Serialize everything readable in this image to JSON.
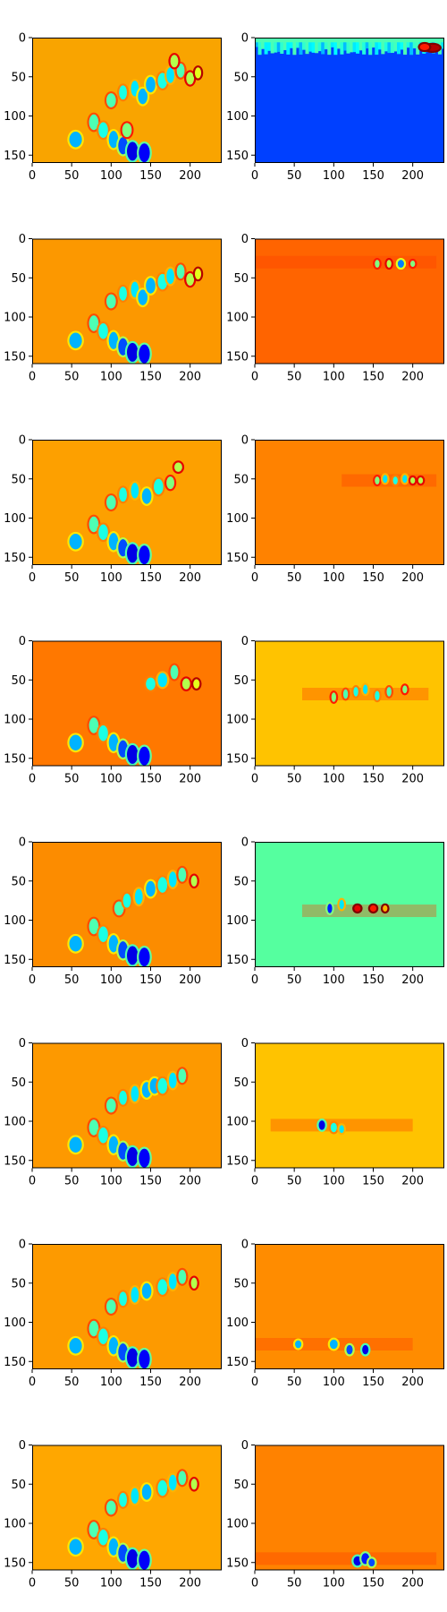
{
  "figure": {
    "layout": "8x2 grid of heatmap subplots",
    "colormap": "jet",
    "interpolation": "nearest"
  },
  "chart_data": {
    "type": "heatmap",
    "grid": {
      "rows": 8,
      "cols": 2
    },
    "image_extent": {
      "width": 240,
      "height": 160
    },
    "x_ticks": [
      0,
      50,
      100,
      150,
      200
    ],
    "y_ticks": [
      0,
      50,
      100,
      150
    ],
    "colormap": "jet",
    "panels": [
      {
        "row": 0,
        "col": 0,
        "background": "#f9a400",
        "blobs": [
          [
            55,
            130,
            8,
            10,
            0.3
          ],
          [
            78,
            108,
            6,
            10,
            0.45
          ],
          [
            90,
            118,
            6,
            10,
            0.4
          ],
          [
            103,
            130,
            6,
            11,
            0.3
          ],
          [
            115,
            138,
            6,
            11,
            0.2
          ],
          [
            127,
            145,
            7,
            12,
            0.1
          ],
          [
            142,
            147,
            7,
            12,
            0.12
          ],
          [
            120,
            118,
            6,
            9,
            0.5
          ],
          [
            100,
            80,
            6,
            9,
            0.45
          ],
          [
            115,
            70,
            5,
            9,
            0.4
          ],
          [
            130,
            65,
            5,
            10,
            0.35
          ],
          [
            140,
            75,
            6,
            10,
            0.3
          ],
          [
            150,
            60,
            6,
            10,
            0.3
          ],
          [
            165,
            55,
            6,
            10,
            0.4
          ],
          [
            175,
            48,
            5,
            10,
            0.35
          ],
          [
            188,
            42,
            5,
            9,
            0.45
          ],
          [
            200,
            52,
            5,
            8,
            0.55
          ],
          [
            210,
            45,
            4,
            7,
            0.6
          ],
          [
            180,
            30,
            5,
            8,
            0.55
          ]
        ]
      },
      {
        "row": 0,
        "col": 1,
        "background": "#0040ff",
        "top_band": true,
        "blobs": [
          [
            225,
            13,
            9,
            4,
            0.95
          ],
          [
            215,
            12,
            6,
            4,
            0.85
          ]
        ]
      },
      {
        "row": 1,
        "col": 0,
        "background": "#fc9800",
        "blobs": [
          [
            55,
            130,
            8,
            10,
            0.3
          ],
          [
            78,
            108,
            6,
            10,
            0.45
          ],
          [
            90,
            118,
            6,
            10,
            0.4
          ],
          [
            103,
            130,
            6,
            11,
            0.3
          ],
          [
            115,
            138,
            6,
            11,
            0.2
          ],
          [
            127,
            145,
            7,
            12,
            0.1
          ],
          [
            142,
            147,
            7,
            12,
            0.12
          ],
          [
            100,
            80,
            6,
            9,
            0.45
          ],
          [
            115,
            70,
            5,
            9,
            0.4
          ],
          [
            130,
            65,
            5,
            10,
            0.35
          ],
          [
            140,
            75,
            6,
            10,
            0.3
          ],
          [
            150,
            60,
            6,
            10,
            0.3
          ],
          [
            165,
            55,
            6,
            10,
            0.4
          ],
          [
            175,
            48,
            5,
            10,
            0.35
          ],
          [
            188,
            42,
            5,
            9,
            0.45
          ],
          [
            200,
            52,
            5,
            8,
            0.55
          ],
          [
            210,
            45,
            4,
            7,
            0.6
          ]
        ]
      },
      {
        "row": 1,
        "col": 1,
        "background": "#ff6400",
        "band_y": 30,
        "band_x": [
          0,
          230
        ],
        "blobs": [
          [
            155,
            32,
            3,
            5,
            0.5
          ],
          [
            170,
            32,
            3,
            5,
            0.55
          ],
          [
            185,
            32,
            4,
            5,
            0.25
          ],
          [
            200,
            32,
            3,
            4,
            0.5
          ]
        ]
      },
      {
        "row": 2,
        "col": 0,
        "background": "#fda000",
        "blobs": [
          [
            55,
            130,
            8,
            10,
            0.3
          ],
          [
            78,
            108,
            6,
            10,
            0.45
          ],
          [
            90,
            118,
            6,
            10,
            0.4
          ],
          [
            103,
            130,
            6,
            11,
            0.3
          ],
          [
            115,
            138,
            6,
            11,
            0.2
          ],
          [
            127,
            145,
            7,
            12,
            0.1
          ],
          [
            142,
            147,
            7,
            12,
            0.12
          ],
          [
            100,
            80,
            6,
            9,
            0.45
          ],
          [
            115,
            70,
            5,
            9,
            0.4
          ],
          [
            130,
            65,
            5,
            10,
            0.35
          ],
          [
            145,
            72,
            6,
            10,
            0.3
          ],
          [
            160,
            60,
            6,
            10,
            0.4
          ],
          [
            175,
            55,
            5,
            8,
            0.5
          ],
          [
            185,
            35,
            5,
            6,
            0.55
          ]
        ]
      },
      {
        "row": 2,
        "col": 1,
        "background": "#ff8200",
        "band_y": 52,
        "band_x": [
          110,
          230
        ],
        "blobs": [
          [
            155,
            52,
            3,
            5,
            0.5
          ],
          [
            165,
            50,
            3,
            5,
            0.35
          ],
          [
            178,
            52,
            3,
            5,
            0.4
          ],
          [
            190,
            50,
            3,
            5,
            0.35
          ],
          [
            200,
            52,
            3,
            4,
            0.55
          ],
          [
            210,
            52,
            3,
            4,
            0.55
          ]
        ]
      },
      {
        "row": 3,
        "col": 0,
        "background": "#ff7800",
        "blobs": [
          [
            55,
            130,
            8,
            10,
            0.3
          ],
          [
            78,
            108,
            6,
            10,
            0.45
          ],
          [
            90,
            118,
            6,
            10,
            0.4
          ],
          [
            103,
            130,
            6,
            11,
            0.3
          ],
          [
            115,
            138,
            6,
            11,
            0.2
          ],
          [
            127,
            145,
            7,
            12,
            0.1
          ],
          [
            142,
            147,
            7,
            12,
            0.12
          ],
          [
            150,
            55,
            6,
            8,
            0.4
          ],
          [
            165,
            50,
            6,
            9,
            0.35
          ],
          [
            180,
            40,
            5,
            9,
            0.45
          ],
          [
            195,
            55,
            5,
            7,
            0.55
          ],
          [
            208,
            55,
            4,
            6,
            0.6
          ]
        ]
      },
      {
        "row": 3,
        "col": 1,
        "background": "#ffc300",
        "band_y": 68,
        "band_x": [
          60,
          220
        ],
        "blobs": [
          [
            100,
            72,
            3,
            6,
            0.5
          ],
          [
            115,
            68,
            3,
            6,
            0.45
          ],
          [
            128,
            65,
            3,
            6,
            0.4
          ],
          [
            140,
            62,
            3,
            6,
            0.35
          ],
          [
            155,
            70,
            3,
            6,
            0.4
          ],
          [
            170,
            65,
            3,
            6,
            0.45
          ],
          [
            190,
            62,
            3,
            5,
            0.5
          ]
        ]
      },
      {
        "row": 4,
        "col": 0,
        "background": "#fc8c00",
        "blobs": [
          [
            55,
            130,
            8,
            10,
            0.3
          ],
          [
            78,
            108,
            6,
            10,
            0.45
          ],
          [
            90,
            118,
            6,
            10,
            0.4
          ],
          [
            103,
            130,
            6,
            11,
            0.3
          ],
          [
            115,
            138,
            6,
            11,
            0.2
          ],
          [
            127,
            145,
            7,
            12,
            0.1
          ],
          [
            142,
            147,
            7,
            12,
            0.12
          ],
          [
            110,
            85,
            6,
            9,
            0.45
          ],
          [
            120,
            75,
            5,
            9,
            0.4
          ],
          [
            135,
            70,
            5,
            10,
            0.35
          ],
          [
            150,
            60,
            6,
            10,
            0.3
          ],
          [
            165,
            55,
            6,
            10,
            0.4
          ],
          [
            178,
            48,
            5,
            10,
            0.35
          ],
          [
            190,
            42,
            5,
            9,
            0.45
          ],
          [
            205,
            50,
            4,
            7,
            0.55
          ]
        ]
      },
      {
        "row": 4,
        "col": 1,
        "background": "#55ff9f",
        "band_y": 88,
        "band_x": [
          60,
          230
        ],
        "blobs": [
          [
            95,
            85,
            3,
            6,
            0.15
          ],
          [
            110,
            80,
            3,
            6,
            0.35
          ],
          [
            130,
            85,
            4,
            4,
            0.9
          ],
          [
            150,
            85,
            4,
            4,
            0.85
          ],
          [
            165,
            85,
            3,
            4,
            0.7
          ]
        ]
      },
      {
        "row": 5,
        "col": 0,
        "background": "#fd9900",
        "blobs": [
          [
            55,
            130,
            8,
            10,
            0.3
          ],
          [
            78,
            108,
            6,
            10,
            0.45
          ],
          [
            90,
            118,
            6,
            10,
            0.4
          ],
          [
            103,
            130,
            6,
            11,
            0.3
          ],
          [
            115,
            138,
            6,
            11,
            0.2
          ],
          [
            127,
            145,
            7,
            12,
            0.1
          ],
          [
            142,
            147,
            7,
            12,
            0.12
          ],
          [
            100,
            80,
            6,
            9,
            0.45
          ],
          [
            115,
            70,
            5,
            9,
            0.4
          ],
          [
            130,
            65,
            5,
            10,
            0.35
          ],
          [
            145,
            60,
            6,
            10,
            0.3
          ],
          [
            155,
            55,
            6,
            10,
            0.3
          ],
          [
            165,
            55,
            6,
            10,
            0.4
          ],
          [
            178,
            48,
            5,
            10,
            0.35
          ],
          [
            190,
            42,
            5,
            9,
            0.45
          ]
        ]
      },
      {
        "row": 5,
        "col": 1,
        "background": "#ffc300",
        "band_y": 105,
        "band_x": [
          20,
          200
        ],
        "blobs": [
          [
            85,
            105,
            4,
            6,
            0.1
          ],
          [
            100,
            108,
            4,
            6,
            0.4
          ],
          [
            110,
            110,
            3,
            5,
            0.35
          ]
        ]
      },
      {
        "row": 6,
        "col": 0,
        "background": "#fd9a00",
        "blobs": [
          [
            55,
            130,
            8,
            10,
            0.3
          ],
          [
            78,
            108,
            6,
            10,
            0.45
          ],
          [
            90,
            118,
            6,
            10,
            0.4
          ],
          [
            103,
            130,
            6,
            11,
            0.3
          ],
          [
            115,
            138,
            6,
            11,
            0.2
          ],
          [
            127,
            145,
            7,
            12,
            0.1
          ],
          [
            142,
            147,
            7,
            12,
            0.12
          ],
          [
            100,
            80,
            6,
            9,
            0.45
          ],
          [
            115,
            70,
            5,
            9,
            0.4
          ],
          [
            130,
            65,
            5,
            10,
            0.35
          ],
          [
            145,
            60,
            6,
            10,
            0.3
          ],
          [
            165,
            55,
            6,
            10,
            0.4
          ],
          [
            178,
            48,
            5,
            10,
            0.35
          ],
          [
            190,
            42,
            5,
            9,
            0.45
          ],
          [
            205,
            50,
            4,
            7,
            0.55
          ]
        ]
      },
      {
        "row": 6,
        "col": 1,
        "background": "#ff8c00",
        "band_y": 128,
        "band_x": [
          0,
          200
        ],
        "blobs": [
          [
            55,
            128,
            4,
            5,
            0.3
          ],
          [
            100,
            128,
            5,
            6,
            0.3
          ],
          [
            120,
            135,
            4,
            6,
            0.2
          ],
          [
            140,
            135,
            4,
            6,
            0.1
          ]
        ]
      },
      {
        "row": 7,
        "col": 0,
        "background": "#ffa700",
        "blobs": [
          [
            55,
            130,
            8,
            10,
            0.3
          ],
          [
            78,
            108,
            6,
            10,
            0.45
          ],
          [
            90,
            118,
            6,
            10,
            0.4
          ],
          [
            103,
            130,
            6,
            11,
            0.3
          ],
          [
            115,
            138,
            6,
            11,
            0.2
          ],
          [
            127,
            145,
            7,
            12,
            0.1
          ],
          [
            142,
            147,
            7,
            12,
            0.12
          ],
          [
            100,
            80,
            6,
            9,
            0.45
          ],
          [
            115,
            70,
            5,
            9,
            0.4
          ],
          [
            130,
            65,
            5,
            10,
            0.35
          ],
          [
            145,
            60,
            6,
            10,
            0.3
          ],
          [
            165,
            55,
            6,
            10,
            0.4
          ],
          [
            178,
            48,
            5,
            10,
            0.35
          ],
          [
            190,
            42,
            5,
            9,
            0.45
          ],
          [
            205,
            50,
            4,
            7,
            0.55
          ]
        ]
      },
      {
        "row": 7,
        "col": 1,
        "background": "#ff8200",
        "band_y": 145,
        "band_x": [
          0,
          230
        ],
        "blobs": [
          [
            130,
            148,
            5,
            6,
            0.1
          ],
          [
            140,
            145,
            5,
            7,
            0.15
          ],
          [
            148,
            150,
            4,
            5,
            0.2
          ]
        ]
      }
    ]
  }
}
